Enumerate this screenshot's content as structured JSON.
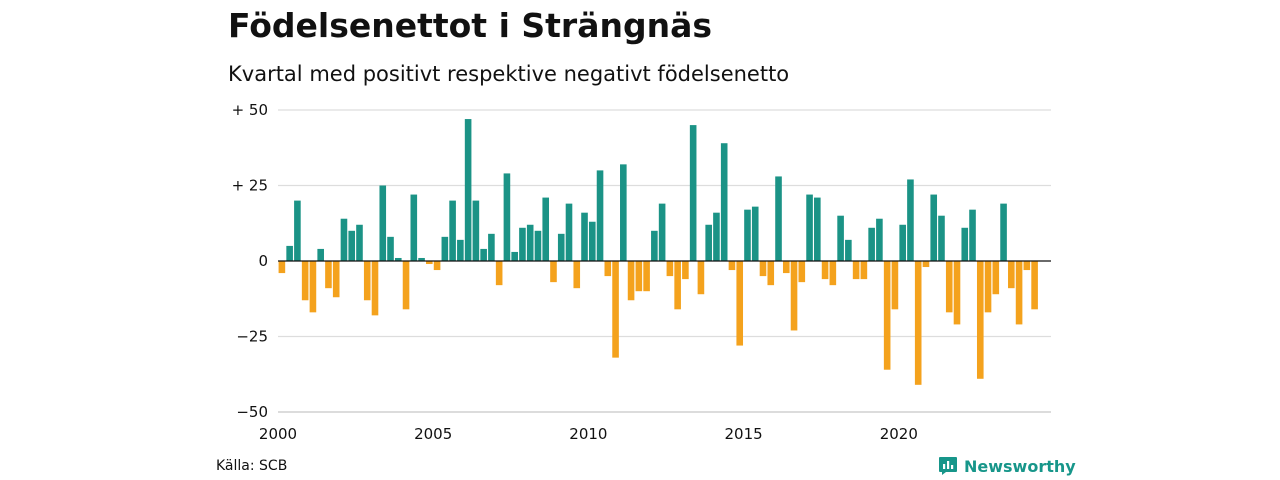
{
  "header": {
    "title": "Födelsenettot i Strängnäs",
    "subtitle": "Kvartal med positivt respektive negativt födelsenetto"
  },
  "footer": {
    "source": "Källa: SCB",
    "brand": "Newsworthy",
    "brand_icon": "bar-chart-speech-icon"
  },
  "colors": {
    "positive": "#1b9386",
    "negative": "#f4a21d",
    "grid": "#dddddd",
    "brand": "#17968a"
  },
  "chart_data": {
    "type": "bar",
    "x_start": "2000 Q1",
    "x_ticks": [
      "2000",
      "2005",
      "2010",
      "2015",
      "2020"
    ],
    "y_ticks": [
      "+ 50",
      "+ 25",
      "0",
      "−25",
      "−50"
    ],
    "y_tick_values": [
      50,
      25,
      0,
      -25,
      -50
    ],
    "ylim": [
      -50,
      50
    ],
    "grid": true,
    "values": [
      -4,
      5,
      20,
      -13,
      -17,
      4,
      -9,
      -12,
      14,
      10,
      12,
      -13,
      -18,
      25,
      8,
      1,
      -16,
      22,
      1,
      -1,
      -3,
      8,
      20,
      7,
      47,
      20,
      4,
      9,
      -8,
      29,
      3,
      11,
      12,
      10,
      21,
      -7,
      9,
      19,
      -9,
      16,
      13,
      30,
      -5,
      -32,
      32,
      -13,
      -10,
      -10,
      10,
      19,
      -5,
      -16,
      -6,
      45,
      -11,
      12,
      16,
      39,
      -3,
      -28,
      17,
      18,
      -5,
      -8,
      28,
      -4,
      -23,
      -7,
      22,
      21,
      -6,
      -8,
      15,
      7,
      -6,
      -6,
      11,
      14,
      -36,
      -16,
      12,
      27,
      -41,
      -2,
      22,
      15,
      -17,
      -21,
      11,
      17,
      -39,
      -17,
      -11,
      19,
      -9,
      -21,
      -3,
      -16
    ]
  }
}
